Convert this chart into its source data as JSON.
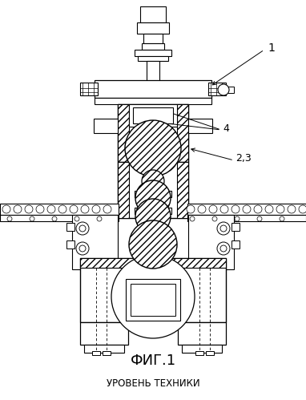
{
  "fig_label": "ФИГ.1",
  "bottom_label": "УРОВЕНЬ ТЕХНИКИ",
  "label_1": "1",
  "label_2": "2,3",
  "label_4": "4",
  "bg_color": "#ffffff",
  "line_color": "#000000",
  "figsize": [
    3.82,
    4.99
  ],
  "dpi": 100
}
